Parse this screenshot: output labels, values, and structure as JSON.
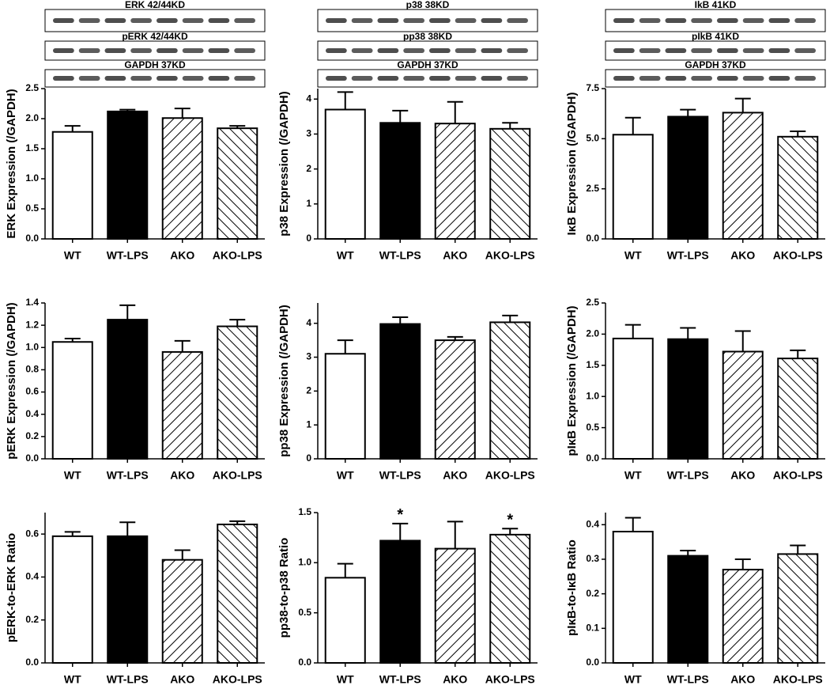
{
  "chart_data": [
    {
      "type": "bar",
      "blots": [
        "ERK  42/44KD",
        "pERK  42/44KD",
        "GAPDH  37KD"
      ],
      "ylabel": "ERK Expression (/GAPDH)",
      "categories": [
        "WT",
        "WT-LPS",
        "AKO",
        "AKO-LPS"
      ],
      "values": [
        1.78,
        2.12,
        2.01,
        1.84
      ],
      "errors": [
        0.1,
        0.03,
        0.16,
        0.04
      ],
      "fills": [
        "white",
        "black",
        "hatch-up",
        "hatch-down"
      ],
      "ylim": [
        0,
        2.5
      ],
      "yticks": [
        {
          "value": 0,
          "label": "0.0"
        },
        0.5,
        {
          "value": 1,
          "label": "1.0"
        },
        1.5,
        {
          "value": 2,
          "label": "2.0"
        },
        2.5
      ]
    },
    {
      "type": "bar",
      "blots": [
        "p38  38KD",
        "pp38  38KD",
        "GAPDH 37KD"
      ],
      "ylabel": "p38 Expression (/GAPDH)",
      "categories": [
        "WT",
        "WT-LPS",
        "AKO",
        "AKO-LPS"
      ],
      "values": [
        3.7,
        3.32,
        3.3,
        3.15
      ],
      "errors": [
        0.5,
        0.35,
        0.62,
        0.17
      ],
      "fills": [
        "white",
        "black",
        "hatch-up",
        "hatch-down"
      ],
      "ylim": [
        0,
        4.3
      ],
      "yticks": [
        0,
        1,
        2,
        3,
        4
      ]
    },
    {
      "type": "bar",
      "blots": [
        "IkB  41KD",
        "pIkB 41KD",
        "GAPDH 37KD"
      ],
      "ylabel": "IκB Expression (/GAPDH)",
      "categories": [
        "WT",
        "WT-LPS",
        "AKO",
        "AKO-LPS"
      ],
      "values": [
        5.2,
        6.1,
        6.3,
        5.1
      ],
      "errors": [
        0.85,
        0.35,
        0.7,
        0.27
      ],
      "fills": [
        "white",
        "black",
        "hatch-up",
        "hatch-down"
      ],
      "ylim": [
        0,
        7.5
      ],
      "yticks": [
        {
          "value": 0,
          "label": "0.0"
        },
        2.5,
        {
          "value": 5,
          "label": "5.0"
        },
        7.5
      ]
    },
    {
      "type": "bar",
      "ylabel": "pERK Expression (/GAPDH)",
      "categories": [
        "WT",
        "WT-LPS",
        "AKO",
        "AKO-LPS"
      ],
      "values": [
        1.05,
        1.25,
        0.96,
        1.19
      ],
      "errors": [
        0.03,
        0.13,
        0.1,
        0.06
      ],
      "fills": [
        "white",
        "black",
        "hatch-up",
        "hatch-down"
      ],
      "ylim": [
        0,
        1.4
      ],
      "yticks": [
        {
          "value": 0,
          "label": "0.0"
        },
        0.2,
        0.4,
        0.6,
        0.8,
        {
          "value": 1,
          "label": "1.0"
        },
        1.2,
        1.4
      ]
    },
    {
      "type": "bar",
      "ylabel": "pp38 Expression (/GAPDH)",
      "categories": [
        "WT",
        "WT-LPS",
        "AKO",
        "AKO-LPS"
      ],
      "values": [
        3.1,
        3.98,
        3.5,
        4.03
      ],
      "errors": [
        0.4,
        0.2,
        0.1,
        0.2
      ],
      "fills": [
        "white",
        "black",
        "hatch-up",
        "hatch-down"
      ],
      "ylim": [
        0,
        4.6
      ],
      "yticks": [
        0,
        1,
        2,
        3,
        4
      ]
    },
    {
      "type": "bar",
      "ylabel": "pIκB Expression (/GAPDH)",
      "categories": [
        "WT",
        "WT-LPS",
        "AKO",
        "AKO-LPS"
      ],
      "values": [
        1.93,
        1.92,
        1.72,
        1.61
      ],
      "errors": [
        0.22,
        0.18,
        0.33,
        0.13
      ],
      "fills": [
        "white",
        "black",
        "hatch-up",
        "hatch-down"
      ],
      "ylim": [
        0,
        2.5
      ],
      "yticks": [
        {
          "value": 0,
          "label": "0.0"
        },
        0.5,
        {
          "value": 1,
          "label": "1.0"
        },
        1.5,
        {
          "value": 2,
          "label": "2.0"
        },
        2.5
      ]
    },
    {
      "type": "bar",
      "ylabel": "pERK-to-ERK Ratio",
      "categories": [
        "WT",
        "WT-LPS",
        "AKO",
        "AKO-LPS"
      ],
      "values": [
        0.59,
        0.59,
        0.48,
        0.645
      ],
      "errors": [
        0.02,
        0.065,
        0.045,
        0.015
      ],
      "fills": [
        "white",
        "black",
        "hatch-up",
        "hatch-down"
      ],
      "ylim": [
        0,
        0.7
      ],
      "yticks": [
        {
          "value": 0,
          "label": "0.0"
        },
        0.2,
        0.4,
        0.6
      ]
    },
    {
      "type": "bar",
      "ylabel": "pp38-to-p38 Ratio",
      "categories": [
        "WT",
        "WT-LPS",
        "AKO",
        "AKO-LPS"
      ],
      "values": [
        0.85,
        1.22,
        1.14,
        1.28
      ],
      "errors": [
        0.14,
        0.17,
        0.27,
        0.06
      ],
      "value_annotations": [
        null,
        "*",
        null,
        "*"
      ],
      "fills": [
        "white",
        "black",
        "hatch-up",
        "hatch-down"
      ],
      "ylim": [
        0,
        1.5
      ],
      "yticks": [
        {
          "value": 0,
          "label": "0.0"
        },
        0.5,
        {
          "value": 1,
          "label": "1.0"
        },
        1.5
      ]
    },
    {
      "type": "bar",
      "ylabel": "pIκB-to-IκB Ratio",
      "categories": [
        "WT",
        "WT-LPS",
        "AKO",
        "AKO-LPS"
      ],
      "values": [
        0.38,
        0.31,
        0.27,
        0.315
      ],
      "errors": [
        0.04,
        0.015,
        0.03,
        0.025
      ],
      "fills": [
        "white",
        "black",
        "hatch-up",
        "hatch-down"
      ],
      "ylim": [
        0,
        0.435
      ],
      "yticks": [
        {
          "value": 0,
          "label": "0.0"
        },
        0.1,
        0.2,
        0.3,
        0.4
      ]
    }
  ]
}
